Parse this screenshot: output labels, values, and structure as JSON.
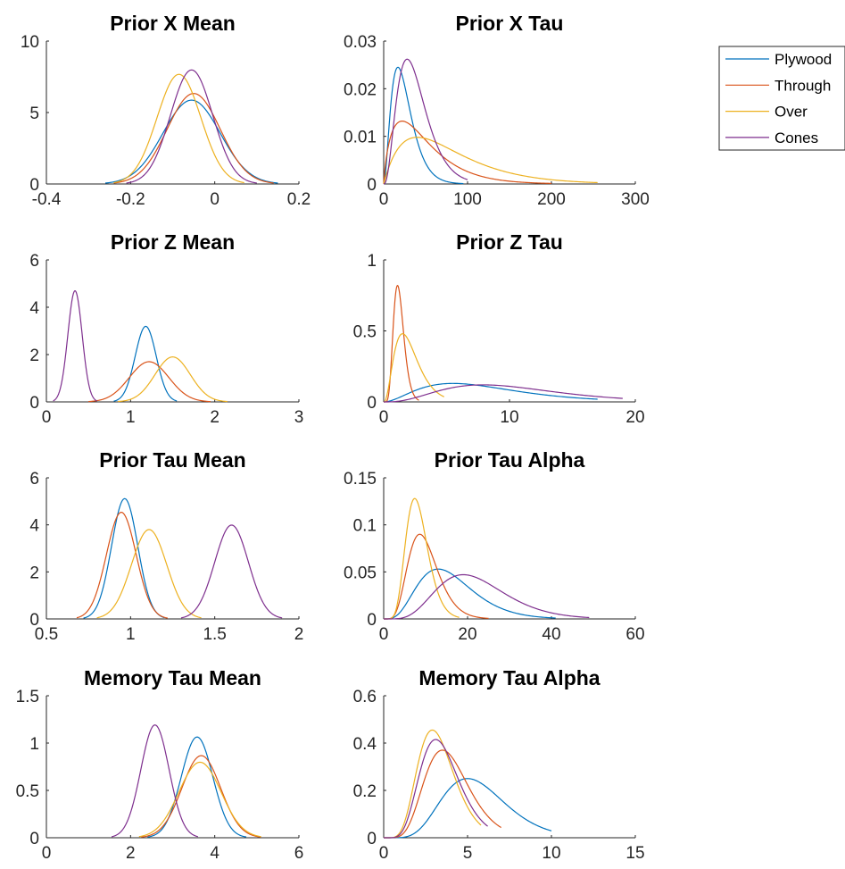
{
  "colors": {
    "Plywood": "#0072BD",
    "Through": "#D95319",
    "Over": "#EDB120",
    "Cones": "#7E2F8E"
  },
  "legend": {
    "placement": "top-right",
    "entries": [
      {
        "label": "Plywood",
        "color": "#0072BD"
      },
      {
        "label": "Through",
        "color": "#D95319"
      },
      {
        "label": "Over",
        "color": "#EDB120"
      },
      {
        "label": "Cones",
        "color": "#7E2F8E"
      }
    ]
  },
  "chart_data": [
    {
      "type": "line",
      "title": "Prior X Mean",
      "xlim": [
        -0.4,
        0.2
      ],
      "ylim": [
        0,
        10
      ],
      "xticks": [
        "-0.4",
        "-0.2",
        "0",
        "0.2"
      ],
      "xtick_values": [
        -0.4,
        -0.2,
        0,
        0.2
      ],
      "yticks": [
        "0",
        "5",
        "10"
      ],
      "ytick_values": [
        0,
        5,
        10
      ],
      "series": [
        {
          "name": "Plywood",
          "dist": "normal",
          "mu": -0.055,
          "sigma": 0.068,
          "range": [
            -0.26,
            0.15
          ]
        },
        {
          "name": "Through",
          "dist": "normal",
          "mu": -0.05,
          "sigma": 0.063,
          "range": [
            -0.24,
            0.14
          ]
        },
        {
          "name": "Over",
          "dist": "normal",
          "mu": -0.085,
          "sigma": 0.052,
          "range": [
            -0.24,
            0.07
          ]
        },
        {
          "name": "Cones",
          "dist": "normal",
          "mu": -0.055,
          "sigma": 0.05,
          "range": [
            -0.21,
            0.1
          ]
        }
      ]
    },
    {
      "type": "line",
      "title": "Prior X Tau",
      "xlim": [
        0,
        300
      ],
      "ylim": [
        0,
        0.03
      ],
      "xticks": [
        "0",
        "100",
        "200",
        "300"
      ],
      "xtick_values": [
        0,
        100,
        200,
        300
      ],
      "yticks": [
        "0",
        "0.01",
        "0.02",
        "0.03"
      ],
      "ytick_values": [
        0,
        0.01,
        0.02,
        0.03
      ],
      "series": [
        {
          "name": "Plywood",
          "dist": "gamma",
          "k": 3.0,
          "mode": 17,
          "peak": 0.0245,
          "range": [
            0,
            95
          ]
        },
        {
          "name": "Through",
          "dist": "gamma",
          "k": 1.8,
          "mode": 22,
          "peak": 0.0132,
          "range": [
            0,
            200
          ]
        },
        {
          "name": "Over",
          "dist": "gamma",
          "k": 2.0,
          "mode": 40,
          "peak": 0.0098,
          "range": [
            0,
            255
          ]
        },
        {
          "name": "Cones",
          "dist": "gamma",
          "k": 3.6,
          "mode": 28,
          "peak": 0.0262,
          "range": [
            0,
            100
          ]
        }
      ]
    },
    {
      "type": "line",
      "title": "Prior Z Mean",
      "xlim": [
        0,
        3
      ],
      "ylim": [
        0,
        6
      ],
      "xticks": [
        "0",
        "1",
        "2",
        "3"
      ],
      "xtick_values": [
        0,
        1,
        2,
        3
      ],
      "yticks": [
        "0",
        "2",
        "4",
        "6"
      ],
      "ytick_values": [
        0,
        2,
        4,
        6
      ],
      "series": [
        {
          "name": "Plywood",
          "dist": "normal",
          "mu": 1.18,
          "sigma": 0.125,
          "range": [
            0.8,
            1.55
          ]
        },
        {
          "name": "Through",
          "dist": "normal",
          "mu": 1.22,
          "sigma": 0.235,
          "range": [
            0.5,
            1.95
          ]
        },
        {
          "name": "Over",
          "dist": "normal",
          "mu": 1.5,
          "sigma": 0.21,
          "range": [
            0.85,
            2.15
          ]
        },
        {
          "name": "Cones",
          "dist": "normal",
          "mu": 0.34,
          "sigma": 0.085,
          "range": [
            0.08,
            0.6
          ]
        }
      ]
    },
    {
      "type": "line",
      "title": "Prior Z Tau",
      "xlim": [
        0,
        20
      ],
      "ylim": [
        0,
        1
      ],
      "xticks": [
        "0",
        "10",
        "20"
      ],
      "xtick_values": [
        0,
        10,
        20
      ],
      "yticks": [
        "0",
        "0.5",
        "1"
      ],
      "ytick_values": [
        0,
        0.5,
        1
      ],
      "series": [
        {
          "name": "Plywood",
          "dist": "gamma",
          "k": 3.0,
          "mode": 5.5,
          "peak": 0.13,
          "range": [
            0,
            17
          ]
        },
        {
          "name": "Through",
          "dist": "gamma",
          "k": 8.0,
          "mode": 1.1,
          "peak": 0.82,
          "range": [
            0,
            2.8
          ]
        },
        {
          "name": "Over",
          "dist": "gamma",
          "k": 3.5,
          "mode": 1.5,
          "peak": 0.48,
          "range": [
            0,
            4.8
          ]
        },
        {
          "name": "Cones",
          "dist": "gamma",
          "k": 4.0,
          "mode": 7.9,
          "peak": 0.12,
          "range": [
            0,
            19
          ]
        }
      ]
    },
    {
      "type": "line",
      "title": "Prior Tau Mean",
      "xlim": [
        0.5,
        2
      ],
      "ylim": [
        0,
        6
      ],
      "xticks": [
        "0.5",
        "1",
        "1.5",
        "2"
      ],
      "xtick_values": [
        0.5,
        1,
        1.5,
        2
      ],
      "yticks": [
        "0",
        "2",
        "4",
        "6"
      ],
      "ytick_values": [
        0,
        2,
        4,
        6
      ],
      "series": [
        {
          "name": "Plywood",
          "dist": "normal",
          "mu": 0.965,
          "sigma": 0.078,
          "range": [
            0.72,
            1.2
          ]
        },
        {
          "name": "Through",
          "dist": "normal",
          "mu": 0.945,
          "sigma": 0.088,
          "range": [
            0.68,
            1.22
          ]
        },
        {
          "name": "Over",
          "dist": "normal",
          "mu": 1.11,
          "sigma": 0.105,
          "range": [
            0.8,
            1.42
          ]
        },
        {
          "name": "Cones",
          "dist": "normal",
          "mu": 1.6,
          "sigma": 0.1,
          "range": [
            1.3,
            1.9
          ]
        }
      ]
    },
    {
      "type": "line",
      "title": "Prior Tau Alpha",
      "xlim": [
        0,
        60
      ],
      "ylim": [
        0,
        0.15
      ],
      "xticks": [
        "0",
        "20",
        "40",
        "60"
      ],
      "xtick_values": [
        0,
        20,
        40,
        60
      ],
      "yticks": [
        "0",
        "0.05",
        "0.1",
        "0.15"
      ],
      "ytick_values": [
        0,
        0.05,
        0.1,
        0.15
      ],
      "series": [
        {
          "name": "Plywood",
          "dist": "gamma",
          "k": 5.0,
          "mode": 13,
          "peak": 0.053,
          "range": [
            0,
            41
          ]
        },
        {
          "name": "Through",
          "dist": "gamma",
          "k": 7.0,
          "mode": 8.6,
          "peak": 0.09,
          "range": [
            0,
            25
          ]
        },
        {
          "name": "Over",
          "dist": "gamma",
          "k": 9.0,
          "mode": 7.4,
          "peak": 0.128,
          "range": [
            0,
            18
          ]
        },
        {
          "name": "Cones",
          "dist": "gamma",
          "k": 6.5,
          "mode": 19,
          "peak": 0.047,
          "range": [
            0,
            49
          ]
        }
      ]
    },
    {
      "type": "line",
      "title": "Memory Tau Mean",
      "xlim": [
        0,
        6
      ],
      "ylim": [
        0,
        1.5
      ],
      "xticks": [
        "0",
        "2",
        "4",
        "6"
      ],
      "xtick_values": [
        0,
        2,
        4,
        6
      ],
      "yticks": [
        "0",
        "0.5",
        "1",
        "1.5"
      ],
      "ytick_values": [
        0,
        0.5,
        1,
        1.5
      ],
      "series": [
        {
          "name": "Plywood",
          "dist": "normal",
          "mu": 3.58,
          "sigma": 0.375,
          "range": [
            2.4,
            4.75
          ]
        },
        {
          "name": "Through",
          "dist": "normal",
          "mu": 3.68,
          "sigma": 0.46,
          "range": [
            2.25,
            5.1
          ]
        },
        {
          "name": "Over",
          "dist": "normal",
          "mu": 3.65,
          "sigma": 0.5,
          "range": [
            2.2,
            5.1
          ]
        },
        {
          "name": "Cones",
          "dist": "normal",
          "mu": 2.58,
          "sigma": 0.335,
          "range": [
            1.55,
            3.6
          ]
        }
      ]
    },
    {
      "type": "line",
      "title": "Memory Tau Alpha",
      "xlim": [
        0,
        15
      ],
      "ylim": [
        0,
        0.6
      ],
      "xticks": [
        "0",
        "5",
        "10",
        "15"
      ],
      "xtick_values": [
        0,
        5,
        10,
        15
      ],
      "yticks": [
        "0",
        "0.2",
        "0.4",
        "0.6"
      ],
      "ytick_values": [
        0,
        0.2,
        0.4,
        0.6
      ],
      "series": [
        {
          "name": "Plywood",
          "dist": "gamma",
          "k": 8.0,
          "mode": 5.0,
          "peak": 0.25,
          "range": [
            0,
            10
          ]
        },
        {
          "name": "Through",
          "dist": "gamma",
          "k": 8.0,
          "mode": 3.5,
          "peak": 0.37,
          "range": [
            0,
            7
          ]
        },
        {
          "name": "Over",
          "dist": "gamma",
          "k": 8.0,
          "mode": 2.9,
          "peak": 0.455,
          "range": [
            0,
            5.8
          ]
        },
        {
          "name": "Cones",
          "dist": "gamma",
          "k": 8.0,
          "mode": 3.1,
          "peak": 0.415,
          "range": [
            0,
            6.2
          ]
        }
      ]
    }
  ]
}
